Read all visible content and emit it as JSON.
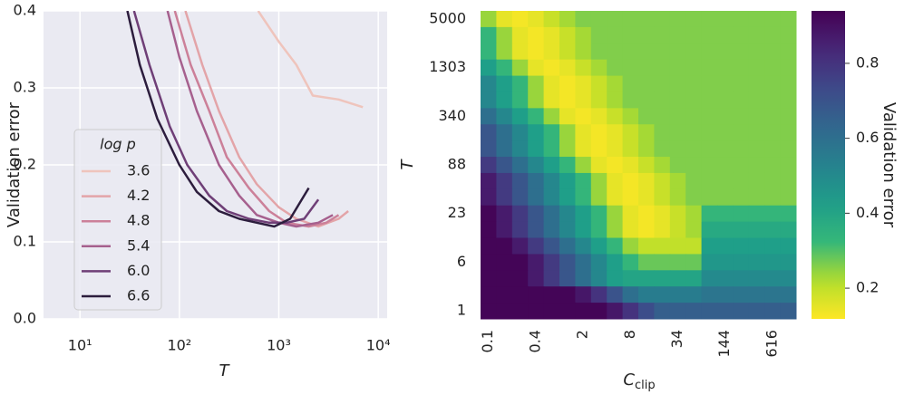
{
  "chart_data": [
    {
      "type": "line",
      "xlabel": "T",
      "ylabel": "Validation error",
      "xscale": "log",
      "grid": true,
      "xlim": [
        4.3,
        12300
      ],
      "ylim": [
        0,
        0.4
      ],
      "xticks": [
        {
          "value": 10,
          "label": "10¹"
        },
        {
          "value": 100,
          "label": "10²"
        },
        {
          "value": 1000,
          "label": "10³"
        },
        {
          "value": 10000,
          "label": "10⁴"
        }
      ],
      "yticks": [
        {
          "value": 0,
          "label": "0.0"
        },
        0.1,
        0.2,
        0.3,
        0.4
      ],
      "legend_title": "log p",
      "legend_position": "lower left",
      "series": [
        {
          "name": "3.6",
          "color": "#efc4bc",
          "x": [
            620,
            1000,
            1500,
            2200,
            4000,
            7000
          ],
          "values": [
            0.4,
            0.36,
            0.33,
            0.29,
            0.285,
            0.275
          ]
        },
        {
          "name": "4.2",
          "color": "#e3a4a8",
          "x": [
            115,
            170,
            250,
            400,
            600,
            1000,
            1500,
            2500,
            4000,
            5000
          ],
          "values": [
            0.4,
            0.33,
            0.27,
            0.21,
            0.175,
            0.145,
            0.13,
            0.12,
            0.13,
            0.14
          ]
        },
        {
          "name": "4.8",
          "color": "#cc8099",
          "x": [
            90,
            130,
            200,
            300,
            500,
            800,
            1200,
            2000,
            3000,
            4000
          ],
          "values": [
            0.4,
            0.33,
            0.27,
            0.21,
            0.17,
            0.14,
            0.125,
            0.12,
            0.125,
            0.135
          ]
        },
        {
          "name": "5.4",
          "color": "#a6608e",
          "x": [
            76,
            100,
            150,
            250,
            400,
            600,
            1000,
            1500,
            2500,
            3500
          ],
          "values": [
            0.4,
            0.34,
            0.27,
            0.2,
            0.16,
            0.135,
            0.125,
            0.12,
            0.125,
            0.135
          ]
        },
        {
          "name": "6.0",
          "color": "#6f3f77",
          "x": [
            35,
            50,
            80,
            120,
            200,
            300,
            500,
            800,
            1200,
            1800,
            2500
          ],
          "values": [
            0.4,
            0.33,
            0.25,
            0.2,
            0.16,
            0.14,
            0.13,
            0.125,
            0.125,
            0.13,
            0.155
          ]
        },
        {
          "name": "6.6",
          "color": "#2c1d3d",
          "x": [
            30,
            40,
            60,
            100,
            150,
            250,
            400,
            600,
            900,
            1300,
            2000
          ],
          "values": [
            0.4,
            0.33,
            0.26,
            0.2,
            0.165,
            0.14,
            0.13,
            0.125,
            0.12,
            0.13,
            0.17
          ]
        }
      ]
    },
    {
      "type": "heatmap",
      "xlabel": "C",
      "xlabel_sub": "clip",
      "ylabel": "T",
      "colorbar_label": "Validation error",
      "colormap": "viridis_r",
      "x": [
        "0.1",
        null,
        null,
        "0.4",
        null,
        null,
        "2",
        null,
        null,
        "8",
        null,
        null,
        "34",
        null,
        null,
        "144",
        null,
        null,
        "616",
        null
      ],
      "y": [
        "5000",
        null,
        null,
        "1303",
        null,
        null,
        "340",
        null,
        null,
        "88",
        null,
        null,
        "23",
        null,
        null,
        "6",
        null,
        null,
        "1"
      ],
      "zlim": [
        0.118,
        0.94
      ],
      "zticks": [
        0.2,
        0.4,
        0.6,
        0.8
      ],
      "z": [
        [
          0.24,
          0.15,
          0.13,
          0.15,
          0.19,
          0.23,
          0.26,
          0.26,
          0.26,
          0.26,
          0.26,
          0.26,
          0.26,
          0.26,
          0.26,
          0.26,
          0.26,
          0.26,
          0.26,
          0.26
        ],
        [
          0.33,
          0.24,
          0.15,
          0.13,
          0.15,
          0.19,
          0.23,
          0.26,
          0.26,
          0.26,
          0.26,
          0.26,
          0.26,
          0.26,
          0.26,
          0.26,
          0.26,
          0.26,
          0.26,
          0.26
        ],
        [
          0.33,
          0.24,
          0.15,
          0.13,
          0.15,
          0.19,
          0.23,
          0.26,
          0.26,
          0.26,
          0.26,
          0.26,
          0.26,
          0.26,
          0.26,
          0.26,
          0.26,
          0.26,
          0.26,
          0.26
        ],
        [
          0.42,
          0.33,
          0.24,
          0.15,
          0.13,
          0.15,
          0.19,
          0.23,
          0.26,
          0.26,
          0.26,
          0.26,
          0.26,
          0.26,
          0.26,
          0.26,
          0.26,
          0.26,
          0.26,
          0.26
        ],
        [
          0.51,
          0.42,
          0.33,
          0.24,
          0.15,
          0.13,
          0.15,
          0.19,
          0.23,
          0.26,
          0.26,
          0.26,
          0.26,
          0.26,
          0.26,
          0.26,
          0.26,
          0.26,
          0.26,
          0.26
        ],
        [
          0.51,
          0.42,
          0.33,
          0.24,
          0.15,
          0.13,
          0.15,
          0.19,
          0.23,
          0.26,
          0.26,
          0.26,
          0.26,
          0.26,
          0.26,
          0.26,
          0.26,
          0.26,
          0.26,
          0.26
        ],
        [
          0.6,
          0.51,
          0.42,
          0.33,
          0.24,
          0.15,
          0.13,
          0.15,
          0.19,
          0.23,
          0.26,
          0.26,
          0.26,
          0.26,
          0.26,
          0.26,
          0.26,
          0.26,
          0.26,
          0.26
        ],
        [
          0.69,
          0.6,
          0.51,
          0.42,
          0.33,
          0.24,
          0.15,
          0.13,
          0.15,
          0.19,
          0.23,
          0.26,
          0.26,
          0.26,
          0.26,
          0.26,
          0.26,
          0.26,
          0.26,
          0.26
        ],
        [
          0.69,
          0.6,
          0.51,
          0.42,
          0.33,
          0.24,
          0.15,
          0.13,
          0.15,
          0.19,
          0.23,
          0.26,
          0.26,
          0.26,
          0.26,
          0.26,
          0.26,
          0.26,
          0.26,
          0.26
        ],
        [
          0.78,
          0.69,
          0.6,
          0.51,
          0.42,
          0.33,
          0.24,
          0.15,
          0.13,
          0.15,
          0.19,
          0.23,
          0.26,
          0.26,
          0.26,
          0.26,
          0.26,
          0.26,
          0.26,
          0.26
        ],
        [
          0.87,
          0.78,
          0.69,
          0.6,
          0.51,
          0.42,
          0.33,
          0.24,
          0.15,
          0.13,
          0.15,
          0.19,
          0.23,
          0.26,
          0.26,
          0.26,
          0.26,
          0.26,
          0.26,
          0.26
        ],
        [
          0.87,
          0.78,
          0.69,
          0.6,
          0.51,
          0.42,
          0.33,
          0.24,
          0.15,
          0.13,
          0.15,
          0.19,
          0.23,
          0.26,
          0.26,
          0.26,
          0.26,
          0.26,
          0.26,
          0.26
        ],
        [
          0.93,
          0.87,
          0.78,
          0.69,
          0.6,
          0.51,
          0.42,
          0.33,
          0.24,
          0.15,
          0.13,
          0.15,
          0.19,
          0.23,
          0.33,
          0.33,
          0.33,
          0.33,
          0.33,
          0.33
        ],
        [
          0.93,
          0.87,
          0.78,
          0.69,
          0.6,
          0.51,
          0.42,
          0.33,
          0.24,
          0.15,
          0.13,
          0.15,
          0.19,
          0.23,
          0.38,
          0.38,
          0.38,
          0.38,
          0.38,
          0.38
        ],
        [
          0.93,
          0.93,
          0.87,
          0.78,
          0.69,
          0.6,
          0.51,
          0.42,
          0.33,
          0.24,
          0.2,
          0.2,
          0.2,
          0.2,
          0.42,
          0.42,
          0.42,
          0.42,
          0.42,
          0.42
        ],
        [
          0.93,
          0.93,
          0.93,
          0.87,
          0.78,
          0.69,
          0.6,
          0.51,
          0.42,
          0.33,
          0.28,
          0.28,
          0.28,
          0.28,
          0.45,
          0.45,
          0.45,
          0.45,
          0.45,
          0.45
        ],
        [
          0.93,
          0.93,
          0.93,
          0.87,
          0.78,
          0.69,
          0.6,
          0.51,
          0.42,
          0.4,
          0.4,
          0.4,
          0.4,
          0.4,
          0.5,
          0.5,
          0.5,
          0.5,
          0.5,
          0.5
        ],
        [
          0.93,
          0.93,
          0.93,
          0.93,
          0.93,
          0.93,
          0.88,
          0.8,
          0.7,
          0.6,
          0.55,
          0.55,
          0.55,
          0.55,
          0.58,
          0.58,
          0.58,
          0.58,
          0.58,
          0.58
        ],
        [
          0.93,
          0.93,
          0.93,
          0.93,
          0.93,
          0.93,
          0.93,
          0.93,
          0.88,
          0.8,
          0.72,
          0.66,
          0.66,
          0.66,
          0.66,
          0.66,
          0.66,
          0.66,
          0.66,
          0.66
        ]
      ]
    }
  ]
}
